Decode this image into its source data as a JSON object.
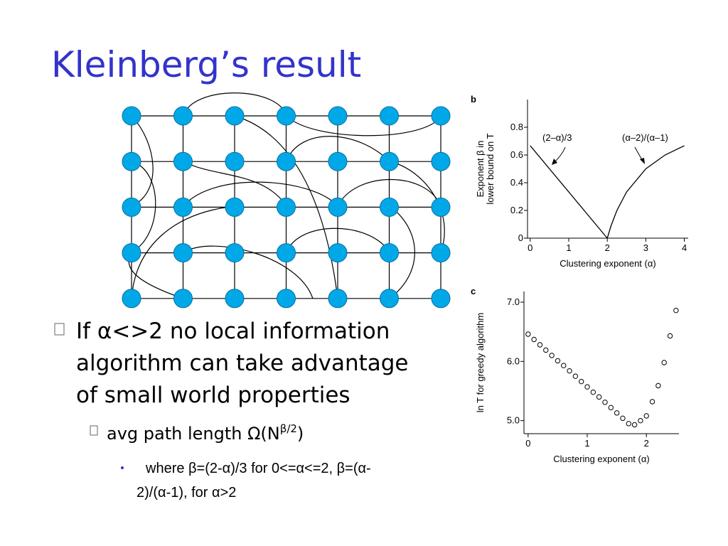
{
  "title": "Kleinberg’s result",
  "bullets": [
    {
      "text": "If α<>2 no local information algorithm can take advantage of small world properties"
    },
    {
      "text": "avg path length Ω(N",
      "sup": "β/2",
      "after": ")"
    },
    {
      "text": "where β=(2-α)/3 for 0<=α<=2, β=(α-2)/(α-1), for α>2"
    }
  ],
  "chart_data": [
    {
      "type": "line",
      "panel": "b",
      "ylabel": [
        "Exponent β in",
        "lower bound on T"
      ],
      "xlabel": "Clustering exponent (α)",
      "xlim": [
        -0.07,
        4.1
      ],
      "ylim": [
        0,
        1.0
      ],
      "xticks": [
        0,
        1,
        2,
        3,
        4
      ],
      "yticks": [
        0,
        0.2,
        0.4,
        0.6,
        0.8
      ],
      "series": [
        {
          "name": "(2–α)/3",
          "color": "#000000",
          "x": [
            0,
            2
          ],
          "values": [
            0.667,
            0
          ]
        },
        {
          "name": "(α–2)/(α–1)",
          "color": "#000000",
          "x": [
            2,
            2.1,
            2.25,
            2.5,
            3,
            3.5,
            4
          ],
          "values": [
            0,
            0.091,
            0.2,
            0.333,
            0.5,
            0.6,
            0.667
          ]
        }
      ]
    },
    {
      "type": "scatter",
      "panel": "c",
      "ylabel": [
        "ln T for  greedy algorithm"
      ],
      "xlabel": "Clustering exponent (α)",
      "xlim": [
        -0.07,
        2.55
      ],
      "ylim": [
        4.78,
        7.18
      ],
      "xticks": [
        0,
        1,
        2
      ],
      "yticks": [
        {
          "value": 5,
          "label": "5.0"
        },
        {
          "value": 6,
          "label": "6.0"
        },
        {
          "value": 7,
          "label": "7.0"
        }
      ],
      "color": "#000000",
      "x": [
        0,
        0.1,
        0.2,
        0.3,
        0.4,
        0.5,
        0.6,
        0.7,
        0.8,
        0.9,
        1.0,
        1.1,
        1.2,
        1.3,
        1.4,
        1.5,
        1.6,
        1.7,
        1.8,
        1.9,
        2.0,
        2.1,
        2.2,
        2.3,
        2.4,
        2.5
      ],
      "values": [
        6.46,
        6.37,
        6.28,
        6.19,
        6.1,
        6.01,
        5.93,
        5.84,
        5.75,
        5.66,
        5.57,
        5.48,
        5.4,
        5.31,
        5.22,
        5.13,
        5.04,
        4.95,
        4.93,
        5.0,
        5.08,
        5.32,
        5.59,
        5.98,
        6.43,
        6.86
      ]
    }
  ]
}
